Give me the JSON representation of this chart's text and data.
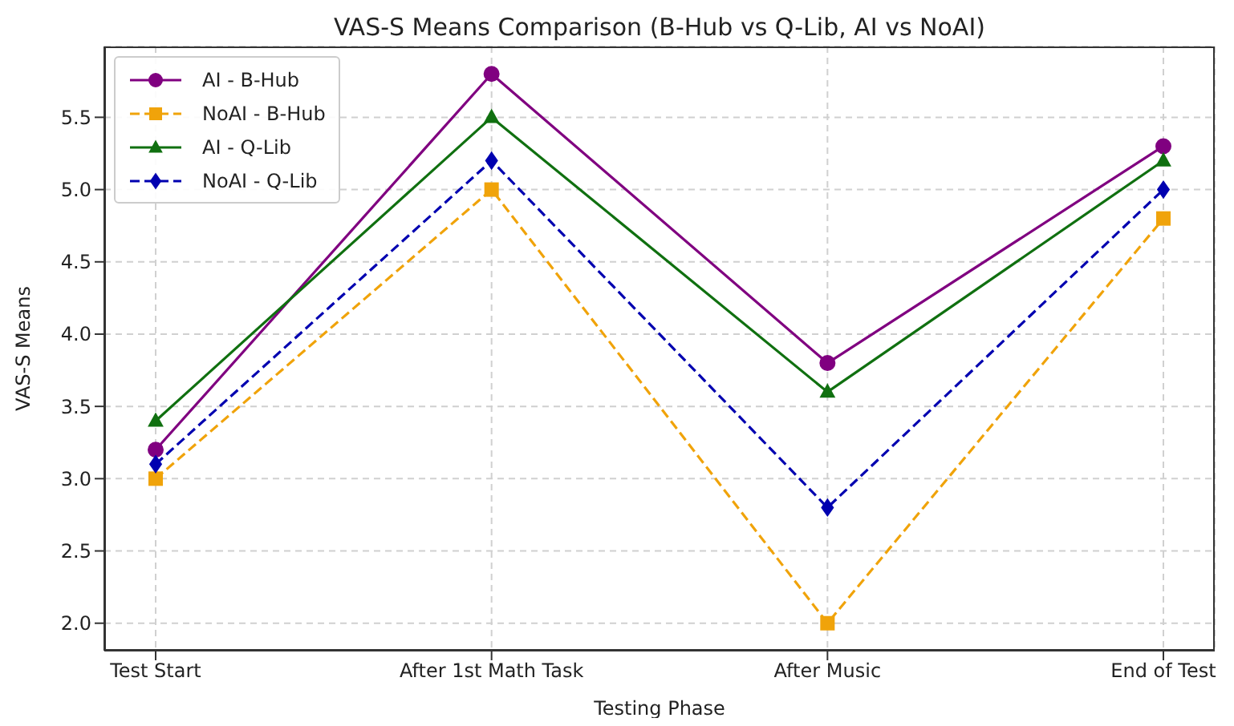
{
  "chart_data": {
    "type": "line",
    "title": "VAS-S Means Comparison (B-Hub vs Q-Lib, AI vs NoAI)",
    "xlabel": "Testing Phase",
    "ylabel": "VAS-S Means",
    "categories": [
      "Test Start",
      "After 1st Math Task",
      "After Music",
      "End of Test"
    ],
    "series": [
      {
        "name": "AI - B-Hub",
        "color": "#800080",
        "marker": "circle",
        "line_style": "solid",
        "values": [
          3.2,
          5.8,
          3.8,
          5.3
        ]
      },
      {
        "name": "NoAI - B-Hub",
        "color": "#f0a30a",
        "marker": "square",
        "line_style": "dashed",
        "values": [
          3.0,
          5.0,
          2.0,
          4.8
        ]
      },
      {
        "name": "AI - Q-Lib",
        "color": "#107010",
        "marker": "triangle",
        "line_style": "solid",
        "values": [
          3.4,
          5.5,
          3.6,
          5.2
        ]
      },
      {
        "name": "NoAI - Q-Lib",
        "color": "#0000b0",
        "marker": "diamond",
        "line_style": "dashed",
        "values": [
          3.1,
          5.2,
          2.8,
          5.0
        ]
      }
    ],
    "ylim": [
      1.81,
      5.99
    ],
    "yticks": [
      {
        "value": 2.0,
        "label": "2.0"
      },
      {
        "value": 2.5,
        "label": "2.5"
      },
      {
        "value": 3.0,
        "label": "3.0"
      },
      {
        "value": 3.5,
        "label": "3.5"
      },
      {
        "value": 4.0,
        "label": "4.0"
      },
      {
        "value": 4.5,
        "label": "4.5"
      },
      {
        "value": 5.0,
        "label": "5.0"
      },
      {
        "value": 5.5,
        "label": "5.5"
      }
    ],
    "grid": true,
    "legend": "top left"
  }
}
